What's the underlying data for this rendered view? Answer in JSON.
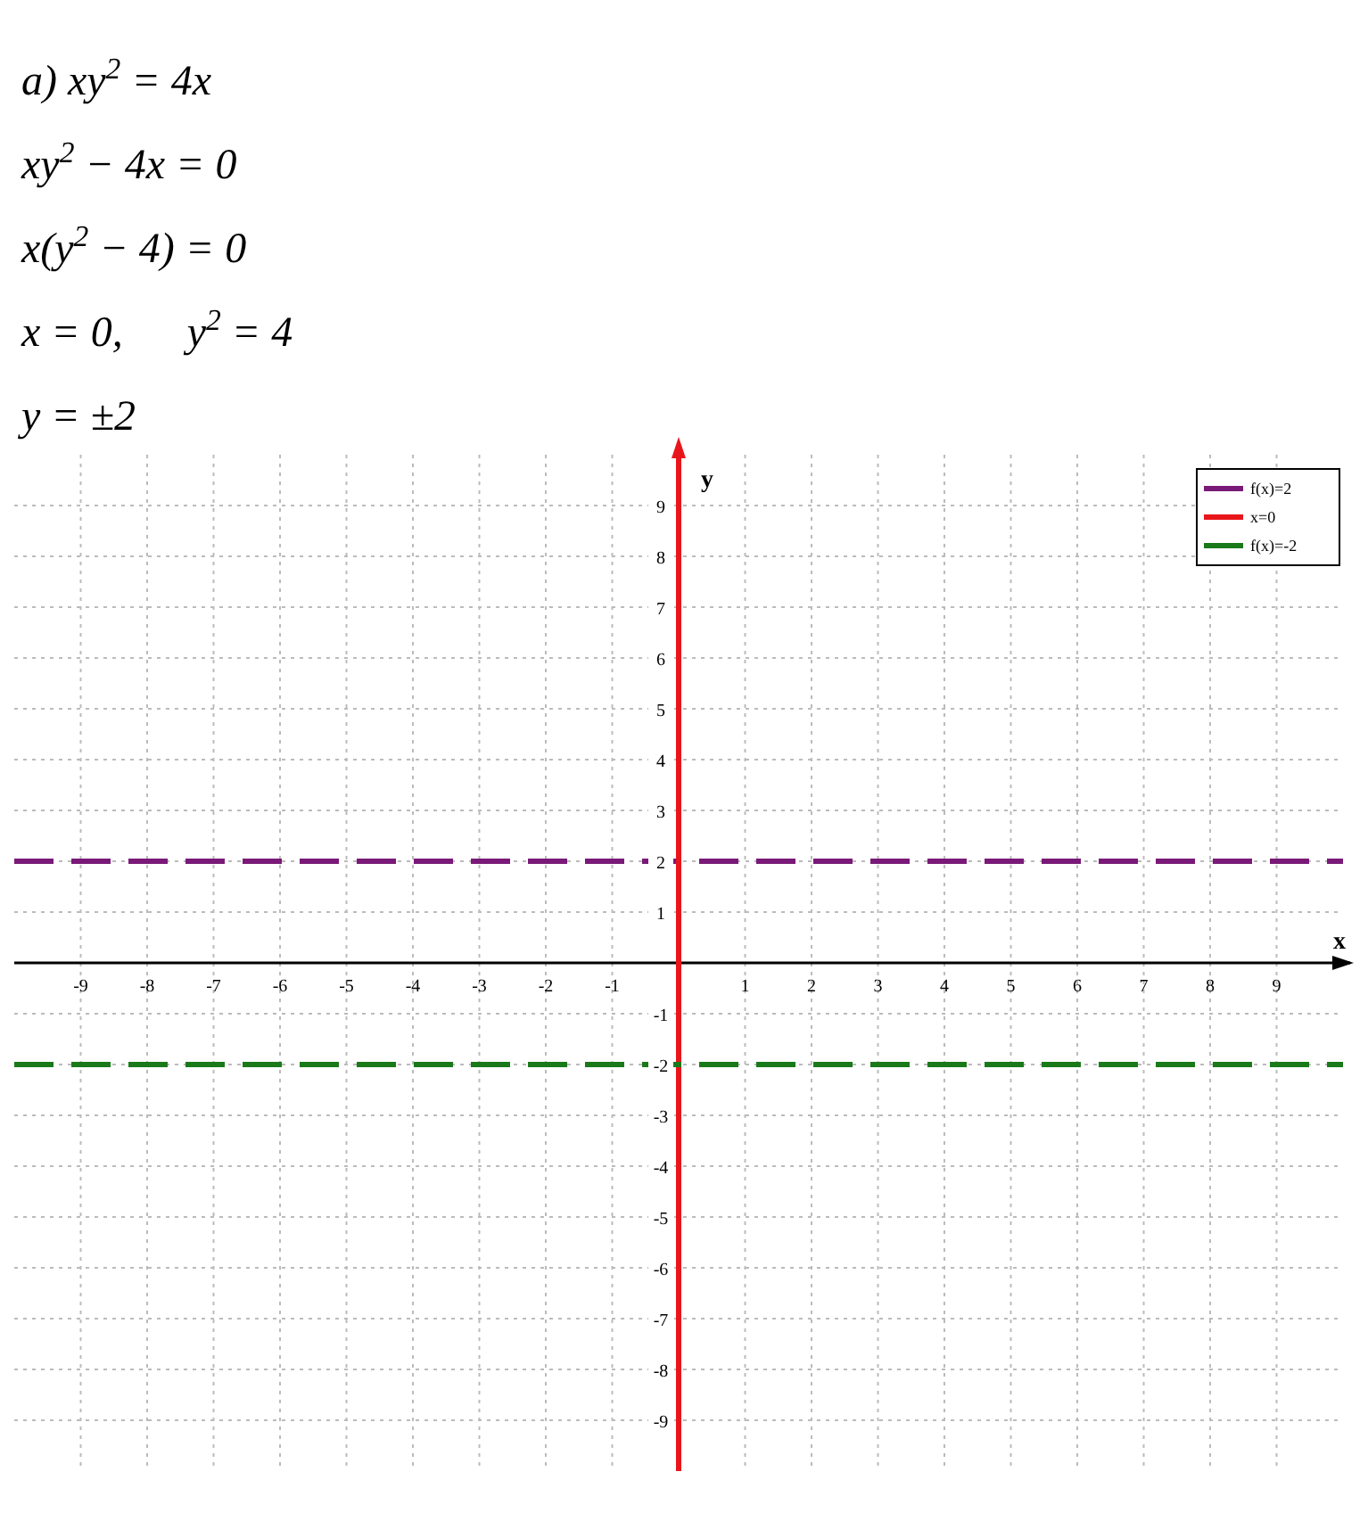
{
  "chart_data": {
    "type": "line",
    "annotations": [
      "а) xy$^{2}$ = 4x",
      "xy$^{2}$ − 4x = 0",
      "x(y$^{2}$ − 4) = 0",
      "x = 0,      y$^{2}$ = 4",
      "y = ±2"
    ],
    "xlabel": "x",
    "ylabel": "y",
    "xlim": [
      -10,
      10
    ],
    "ylim": [
      -10,
      10
    ],
    "xticks": [
      -9,
      -8,
      -7,
      -6,
      -5,
      -4,
      -3,
      -2,
      -1,
      1,
      2,
      3,
      4,
      5,
      6,
      7,
      8,
      9
    ],
    "yticks": [
      -9,
      -8,
      -7,
      -6,
      -5,
      -4,
      -3,
      -2,
      -1,
      1,
      2,
      3,
      4,
      5,
      6,
      7,
      8,
      9
    ],
    "grid": true,
    "legend": "top right",
    "series": [
      {
        "name": "f(x)=2",
        "color": "#7a1a78",
        "x": [
          -10,
          10
        ],
        "values": [
          2,
          2
        ],
        "line_style": "dashed"
      },
      {
        "name": "x=0",
        "color": "#e8161b",
        "x": [
          0,
          0
        ],
        "values": [
          -10,
          10
        ],
        "line_style": "solid"
      },
      {
        "name": "f(x)=-2",
        "color": "#1a7a1a",
        "x": [
          -10,
          10
        ],
        "values": [
          -2,
          -2
        ],
        "line_style": "dashed"
      }
    ]
  }
}
